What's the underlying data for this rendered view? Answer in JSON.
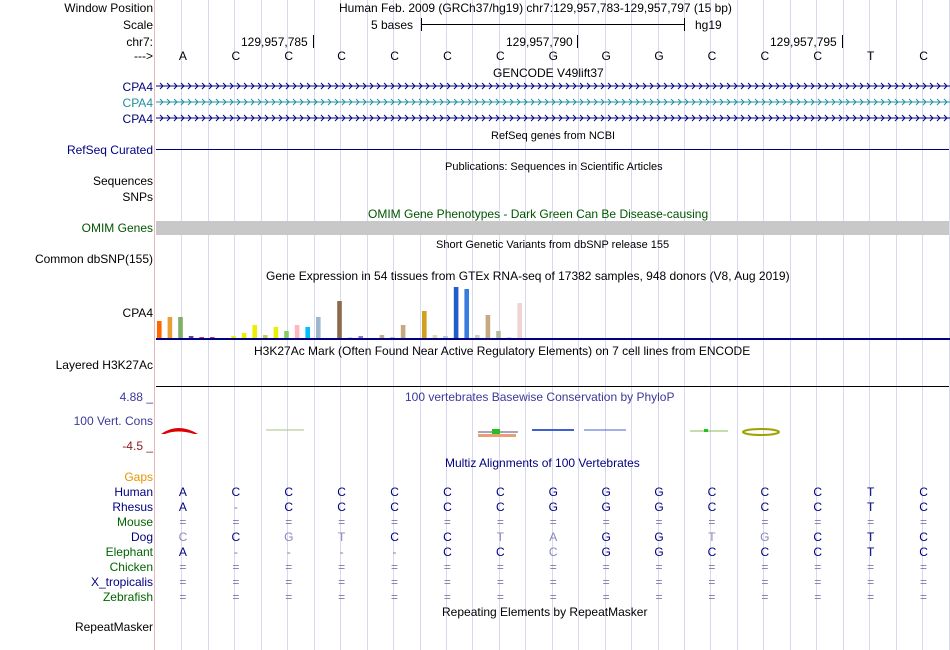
{
  "header": {
    "window_position_label": "Window Position",
    "scale_label": "Scale",
    "chr_label": "chr7:",
    "strand_label": "--->",
    "assembly_title": "Human Feb. 2009 (GRCh37/hg19)   chr7:129,957,783-129,957,797 (15 bp)",
    "scale_text": "5 bases",
    "scale_db": "hg19",
    "coord_1": "129,957,785",
    "coord_2": "129,957,790",
    "coord_3": "129,957,795"
  },
  "bases": [
    "A",
    "C",
    "C",
    "C",
    "C",
    "C",
    "C",
    "G",
    "G",
    "G",
    "C",
    "C",
    "C",
    "T",
    "C"
  ],
  "tracks": {
    "gencode": {
      "title": "GENCODE V49lift37",
      "labels": [
        "CPA4",
        "CPA4",
        "CPA4"
      ]
    },
    "refseq": {
      "title": "RefSeq genes from NCBI",
      "label": "RefSeq Curated"
    },
    "publications": {
      "title": "Publications: Sequences in Scientific Articles",
      "labels": [
        "Sequences",
        "SNPs"
      ]
    },
    "omim": {
      "title": "OMIM Gene Phenotypes - Dark Green Can Be Disease-causing",
      "label": "OMIM Genes"
    },
    "dbsnp": {
      "title": "Short Genetic Variants from dbSNP release 155",
      "label": "Common dbSNP(155)"
    },
    "gtex": {
      "title": "Gene Expression in 54 tissues from GTEx RNA-seq of 17382 samples, 948 donors (V8, Aug 2019)",
      "label": "CPA4"
    },
    "h3k27ac": {
      "title": "H3K27Ac Mark (Often Found Near Active Regulatory Elements) on 7 cell lines from ENCODE",
      "label": "Layered H3K27Ac"
    },
    "phylop": {
      "title": "100 vertebrates Basewise Conservation by PhyloP",
      "label": "100 Vert. Cons",
      "max": "4.88 _",
      "min": "-4.5 _"
    },
    "multiz": {
      "title": "Multiz Alignments of 100 Vertebrates",
      "gaps_label": "Gaps"
    },
    "repeatmasker": {
      "title": "Repeating Elements by RepeatMasker",
      "label": "RepeatMasker"
    }
  },
  "alignments": [
    {
      "species": "Human",
      "color": "#000080",
      "bases": [
        "A",
        "C",
        "C",
        "C",
        "C",
        "C",
        "C",
        "G",
        "G",
        "G",
        "C",
        "C",
        "C",
        "T",
        "C"
      ]
    },
    {
      "species": "Rhesus",
      "color": "#000080",
      "bases": [
        "A",
        "-",
        "C",
        "C",
        "C",
        "C",
        "C",
        "G",
        "G",
        "G",
        "C",
        "C",
        "C",
        "T",
        "C"
      ]
    },
    {
      "species": "Mouse",
      "color": "#006400",
      "bases": [
        "=",
        "=",
        "=",
        "=",
        "=",
        "=",
        "=",
        "=",
        "=",
        "=",
        "=",
        "=",
        "=",
        "=",
        "="
      ]
    },
    {
      "species": "Dog",
      "color": "#000080",
      "bases": [
        "C",
        "C",
        "G",
        "T",
        "C",
        "C",
        "T",
        "A",
        "G",
        "G",
        "T",
        "G",
        "C",
        "T",
        "C"
      ]
    },
    {
      "species": "Elephant",
      "color": "#006400",
      "bases": [
        "A",
        "-",
        "-",
        "-",
        "-",
        "C",
        "C",
        "C",
        "G",
        "G",
        "C",
        "C",
        "C",
        "T",
        "C"
      ]
    },
    {
      "species": "Chicken",
      "color": "#006400",
      "bases": [
        "=",
        "=",
        "=",
        "=",
        "=",
        "=",
        "=",
        "=",
        "=",
        "=",
        "=",
        "=",
        "=",
        "=",
        "="
      ]
    },
    {
      "species": "X_tropicalis",
      "color": "#000080",
      "bases": [
        "=",
        "=",
        "=",
        "=",
        "=",
        "=",
        "=",
        "=",
        "=",
        "=",
        "=",
        "=",
        "=",
        "=",
        "="
      ]
    },
    {
      "species": "Zebrafish",
      "color": "#006400",
      "bases": [
        "=",
        "=",
        "=",
        "=",
        "=",
        "=",
        "=",
        "=",
        "=",
        "=",
        "=",
        "=",
        "=",
        "=",
        "="
      ]
    }
  ],
  "gtex_bars": [
    {
      "color": "#FF6600",
      "value": 18
    },
    {
      "color": "#E8A033",
      "value": 22
    },
    {
      "color": "#7FB069",
      "value": 22
    },
    {
      "color": "#6A3D9A",
      "value": 3
    },
    {
      "color": "#CC3366",
      "value": 2
    },
    {
      "color": "#CC3366",
      "value": 2
    },
    {
      "color": "#F0E68C",
      "value": 1
    },
    {
      "color": "#EEEE00",
      "value": 3
    },
    {
      "color": "#EEEE00",
      "value": 6
    },
    {
      "color": "#EEEE00",
      "value": 14
    },
    {
      "color": "#CCCC55",
      "value": 4
    },
    {
      "color": "#EEEE00",
      "value": 12
    },
    {
      "color": "#88CC66",
      "value": 8
    },
    {
      "color": "#FFB6C1",
      "value": 14
    },
    {
      "color": "#00BFFF",
      "value": 12
    },
    {
      "color": "#9FB6CD",
      "value": 22
    },
    {
      "color": "#A0A0A0",
      "value": 1
    },
    {
      "color": "#8B6B4B",
      "value": 38
    },
    {
      "color": "#DDDDDD",
      "value": 2
    },
    {
      "color": "#9370DB",
      "value": 3
    },
    {
      "color": "#AAAAAA",
      "value": 1
    },
    {
      "color": "#CCAA88",
      "value": 4
    },
    {
      "color": "#BBBBBB",
      "value": 2
    },
    {
      "color": "#C8A882",
      "value": 14
    },
    {
      "color": "#CCCCCC",
      "value": 1
    },
    {
      "color": "#D2A020",
      "value": 28
    },
    {
      "color": "#DDDDAA",
      "value": 4
    },
    {
      "color": "#AACCDD",
      "value": 3
    },
    {
      "color": "#1E5FCC",
      "value": 52
    },
    {
      "color": "#3A7BE0",
      "value": 50
    },
    {
      "color": "#CCCCCC",
      "value": 4
    },
    {
      "color": "#C8A882",
      "value": 24
    },
    {
      "color": "#B8B8A0",
      "value": 8
    },
    {
      "color": "#DDDDDD",
      "value": 2
    },
    {
      "color": "#EED5D2",
      "value": 36
    }
  ],
  "colors": {
    "gencode": "#000080",
    "gencode_alt": "#1E90A0",
    "refseq": "#000080",
    "omim_bar": "#c8c8c8",
    "omim_title": "#005500",
    "phylop": "#3a3a9a",
    "phylop_min": "#8B1A1A",
    "gaps": "#E69500",
    "track_title": "#000000"
  }
}
